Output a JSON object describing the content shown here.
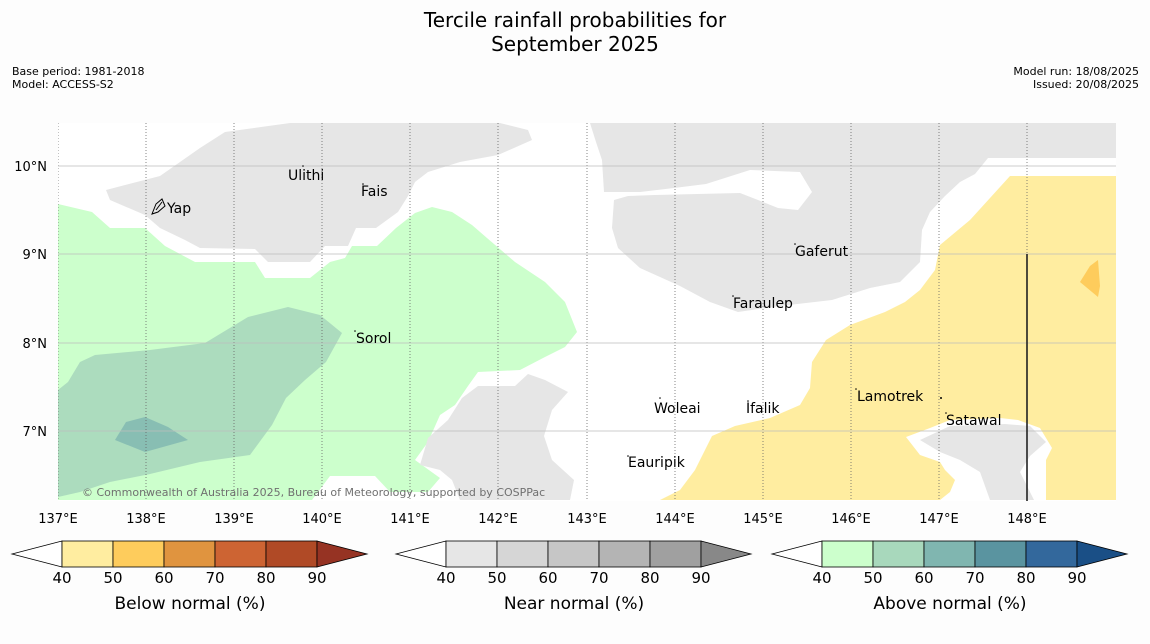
{
  "title_line1": "Tercile rainfall probabilities for",
  "title_line2": "September 2025",
  "meta_left": [
    "Base period: 1981-2018",
    "Model: ACCESS-S2"
  ],
  "meta_right": [
    "Model run: 18/08/2025",
    "Issued: 20/08/2025"
  ],
  "copyright": "© Commonwealth of Australia 2025, Bureau of Meteorology, supported by COSPPac",
  "axes": {
    "lon_labels": [
      "137°E",
      "138°E",
      "139°E",
      "140°E",
      "141°E",
      "142°E",
      "143°E",
      "144°E",
      "145°E",
      "146°E",
      "147°E",
      "148°E"
    ],
    "lat_labels": [
      "10°N",
      "9°N",
      "8°N",
      "7°N"
    ]
  },
  "places": [
    {
      "name": "Yap"
    },
    {
      "name": "Ulithi"
    },
    {
      "name": "Fais"
    },
    {
      "name": "Sorol"
    },
    {
      "name": "Gaferut"
    },
    {
      "name": "Faraulep"
    },
    {
      "name": "Woleai"
    },
    {
      "name": "Ifalik"
    },
    {
      "name": "Eauripik"
    },
    {
      "name": "Lamotrek"
    },
    {
      "name": "Satawal"
    }
  ],
  "colorbars": [
    {
      "label": "Below normal (%)",
      "ticks": [
        "40",
        "50",
        "60",
        "70",
        "80",
        "90"
      ],
      "colors": [
        "#ffffff",
        "#ffeda0",
        "#fecc5c",
        "#e0943f",
        "#cd6433",
        "#b04a26",
        "#963323"
      ]
    },
    {
      "label": "Near normal (%)",
      "ticks": [
        "40",
        "50",
        "60",
        "70",
        "80",
        "90"
      ],
      "colors": [
        "#ffffff",
        "#e6e6e6",
        "#d6d6d6",
        "#c6c6c6",
        "#b4b4b4",
        "#a0a0a0",
        "#888888"
      ]
    },
    {
      "label": "Above normal (%)",
      "ticks": [
        "40",
        "50",
        "60",
        "70",
        "80",
        "90"
      ],
      "colors": [
        "#ffffff",
        "#ccffcc",
        "#a8d8bc",
        "#80b6b0",
        "#5a94a0",
        "#33689c",
        "#1a4f86"
      ]
    }
  ]
}
